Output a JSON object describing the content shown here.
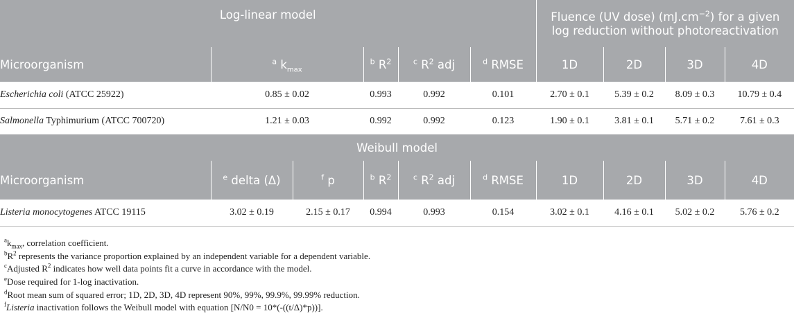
{
  "table": {
    "group_headers": {
      "log_linear": "Log-linear model",
      "fluence": "Fluence (UV dose) (mJ.cm",
      "fluence_sup": "−2",
      "fluence_tail": ") for a given",
      "fluence_line2": "log reduction without photoreactivation",
      "weibull": "Weibull model"
    },
    "columns_loglinear": {
      "microorganism": "Microorganism",
      "kmax_mark": "a",
      "kmax": "k",
      "kmax_sub": "max",
      "r2_mark": "b",
      "r2": "R",
      "r2_sup": "2",
      "r2adj_mark": "c",
      "r2adj": "R",
      "r2adj_sup": "2",
      "r2adj_tail": " adj",
      "rmse_mark": "d",
      "rmse": "RMSE",
      "d1": "1D",
      "d2": "2D",
      "d3": "3D",
      "d4": "4D"
    },
    "columns_weibull": {
      "microorganism": "Microorganism",
      "delta_mark": "e",
      "delta": "delta (Δ)",
      "p_mark": "f",
      "p": "p",
      "r2_mark": "b",
      "r2": "R",
      "r2_sup": "2",
      "r2adj_mark": "c",
      "r2adj": "R",
      "r2adj_sup": "2",
      "r2adj_tail": " adj",
      "rmse_mark": "d",
      "rmse": "RMSE",
      "d1": "1D",
      "d2": "2D",
      "d3": "3D",
      "d4": "4D"
    },
    "loglinear_rows": [
      {
        "name_italic": "Escherichia coli",
        "name_rest": " (ATCC 25922)",
        "kmax": "0.85 ± 0.02",
        "r2": "0.993",
        "r2adj": "0.992",
        "rmse": "0.101",
        "d1": "2.70 ± 0.1",
        "d2": "5.39 ± 0.2",
        "d3": "8.09 ± 0.3",
        "d4": "10.79 ± 0.4"
      },
      {
        "name_italic": "Salmonella",
        "name_rest": " Typhimurium (ATCC 700720)",
        "kmax": "1.21 ± 0.03",
        "r2": "0.992",
        "r2adj": "0.992",
        "rmse": "0.123",
        "d1": "1.90 ± 0.1",
        "d2": "3.81 ± 0.1",
        "d3": "5.71 ± 0.2",
        "d4": "7.61 ± 0.3"
      }
    ],
    "weibull_rows": [
      {
        "name_italic": "Listeria monocytogenes",
        "name_rest": " ATCC 19115",
        "delta": "3.02 ± 0.19",
        "p": "2.15 ± 0.17",
        "r2": "0.994",
        "r2adj": "0.993",
        "rmse": "0.154",
        "d1": "3.02 ± 0.1",
        "d2": "4.16 ± 0.1",
        "d3": "5.02 ± 0.2",
        "d4": "5.76 ± 0.2"
      }
    ]
  },
  "footnotes": {
    "a": {
      "mark": "a",
      "pre": "k",
      "sub": "max",
      "text": ", correlation coefficient."
    },
    "b": {
      "mark": "b",
      "pre": "R",
      "sup": "2",
      "text": " represents the variance proportion explained by an independent variable for a dependent variable."
    },
    "c": {
      "mark": "c",
      "pre": "Adjusted R",
      "sup": "2",
      "text": " indicates how well data points fit a curve in accordance with the model."
    },
    "e": {
      "mark": "e",
      "text": "Dose required for 1-log inactivation."
    },
    "d": {
      "mark": "d",
      "text": "Root mean sum of squared error; 1D, 2D, 3D, 4D represent 90%, 99%, 99.9%, 99.99% reduction."
    },
    "f": {
      "mark": "f",
      "italic": "Listeria",
      "text": " inactivation follows the Weibull model with equation [N/N0 = 10*(-((t/Δ)*p))]."
    }
  }
}
